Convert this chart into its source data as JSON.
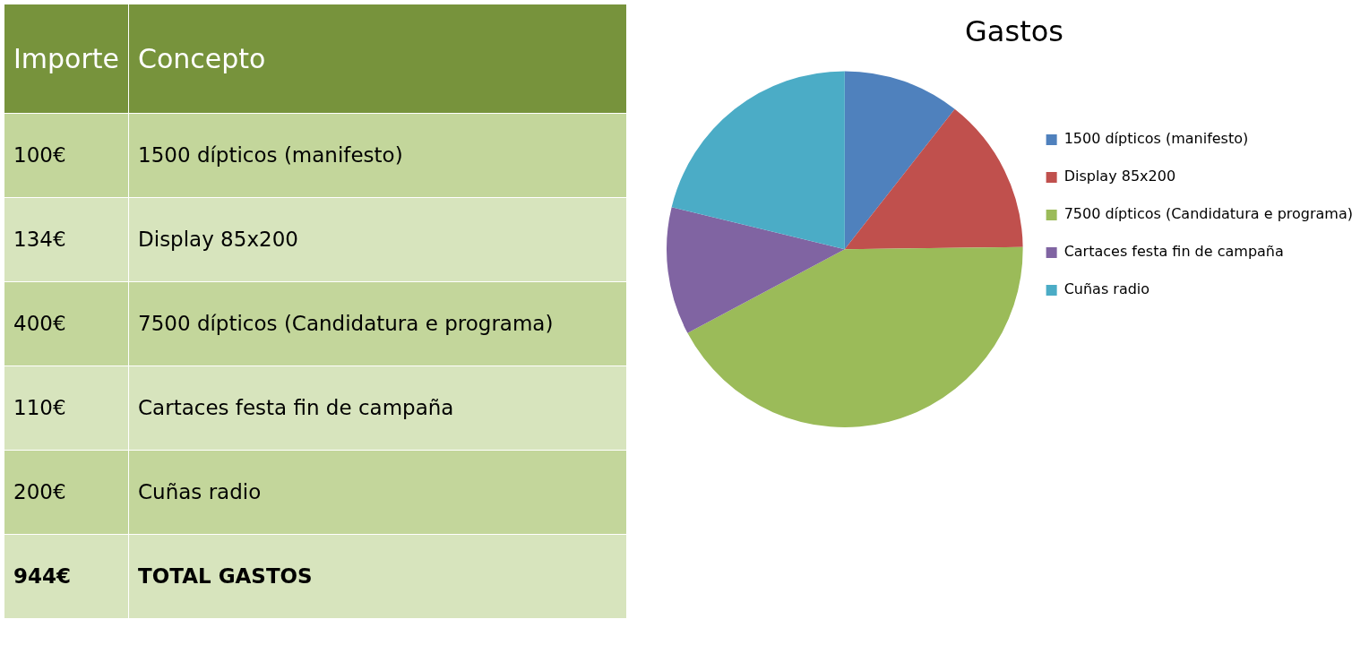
{
  "chart_data": {
    "type": "pie",
    "title": "Gastos",
    "categories": [
      "1500 dípticos (manifesto)",
      "Display 85x200",
      "7500 dípticos (Candidatura e programa)",
      "Cartaces festa fin de campaña",
      "Cuñas radio"
    ],
    "values": [
      10.6,
      14.2,
      42.4,
      11.6,
      21.2
    ],
    "colors": [
      "#4f81bd",
      "#c0504d",
      "#9bbb59",
      "#8064a2",
      "#4bacc6"
    ],
    "legend": "right",
    "annotations": [
      "Importe",
      "Concepto",
      "100€",
      "134€",
      "400€",
      "110€",
      "200€",
      "944€",
      "TOTAL GASTOS"
    ]
  }
}
